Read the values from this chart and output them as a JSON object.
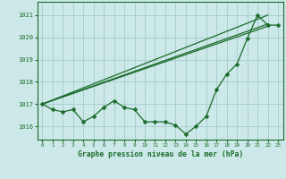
{
  "bg_color": "#cce8e8",
  "grid_color": "#a8d0d0",
  "line_color": "#1a6b2a",
  "title": "Graphe pression niveau de la mer (hPa)",
  "xlim": [
    -0.5,
    23.5
  ],
  "ylim": [
    1015.4,
    1021.6
  ],
  "yticks": [
    1016,
    1017,
    1018,
    1019,
    1020,
    1021
  ],
  "xticks": [
    0,
    1,
    2,
    3,
    4,
    5,
    6,
    7,
    8,
    9,
    10,
    11,
    12,
    13,
    14,
    15,
    16,
    17,
    18,
    19,
    20,
    21,
    22,
    23
  ],
  "line1": {
    "x": [
      0,
      22
    ],
    "y": [
      1017.0,
      1021.0
    ]
  },
  "line2": {
    "x": [
      0,
      22
    ],
    "y": [
      1017.0,
      1020.6
    ]
  },
  "line3": {
    "x": [
      0,
      22
    ],
    "y": [
      1017.0,
      1020.5
    ]
  },
  "main_series": {
    "x": [
      0,
      1,
      2,
      3,
      4,
      5,
      6,
      7,
      8,
      9,
      10,
      11,
      12,
      13,
      14,
      15,
      16,
      17,
      18,
      19,
      20,
      21,
      22,
      23
    ],
    "y": [
      1017.0,
      1016.75,
      1016.65,
      1016.75,
      1016.2,
      1016.45,
      1016.85,
      1017.15,
      1016.85,
      1016.75,
      1016.2,
      1016.2,
      1016.2,
      1016.05,
      1015.65,
      1016.0,
      1016.45,
      1017.65,
      1018.35,
      1018.8,
      1019.95,
      1021.0,
      1020.55,
      1020.55
    ]
  }
}
